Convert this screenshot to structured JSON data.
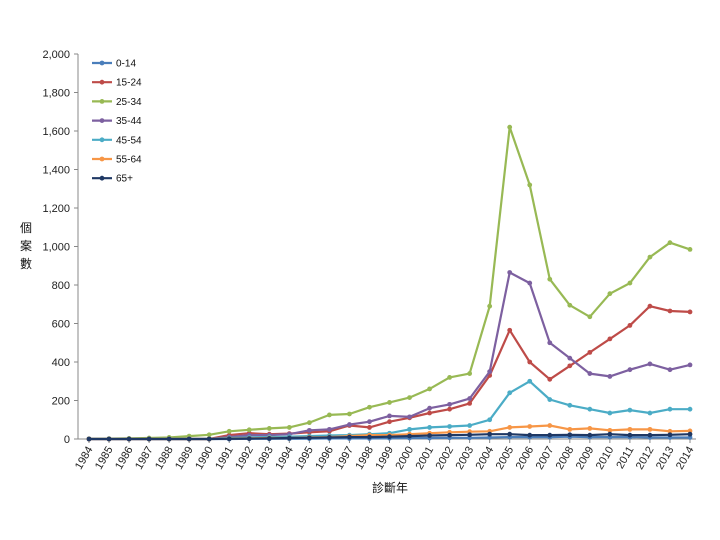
{
  "chart_data": {
    "type": "line",
    "title": "",
    "xlabel": "診斷年",
    "ylabel": "個案數",
    "ylim": [
      0,
      2000
    ],
    "yticks": [
      0,
      200,
      400,
      600,
      800,
      1000,
      1200,
      1400,
      1600,
      1800,
      2000
    ],
    "ytick_labels": [
      "0",
      "200",
      "400",
      "600",
      "800",
      "1,000",
      "1,200",
      "1,400",
      "1,600",
      "1,800",
      "2,000"
    ],
    "legend_position": "top-left",
    "categories": [
      "1984",
      "1985",
      "1986",
      "1987",
      "1988",
      "1989",
      "1990",
      "1991",
      "1992",
      "1993",
      "1994",
      "1995",
      "1996",
      "1997",
      "1998",
      "1999",
      "2000",
      "2001",
      "2002",
      "2003",
      "2004",
      "2005",
      "2006",
      "2007",
      "2008",
      "2009",
      "2010",
      "2011",
      "2012",
      "2013",
      "2014"
    ],
    "series": [
      {
        "name": "0-14",
        "color": "#4a7ebb",
        "values": [
          0,
          0,
          0,
          0,
          0,
          0,
          0,
          0,
          1,
          1,
          1,
          2,
          3,
          3,
          3,
          4,
          5,
          5,
          6,
          6,
          8,
          10,
          10,
          10,
          12,
          10,
          10,
          10,
          8,
          8,
          8
        ]
      },
      {
        "name": "15-24",
        "color": "#be4b48",
        "values": [
          0,
          0,
          0,
          0,
          0,
          0,
          0,
          20,
          30,
          25,
          28,
          35,
          40,
          70,
          60,
          90,
          110,
          135,
          155,
          185,
          330,
          565,
          400,
          310,
          380,
          450,
          520,
          590,
          690,
          665,
          660
        ]
      },
      {
        "name": "25-34",
        "color": "#98b954",
        "values": [
          1,
          2,
          3,
          5,
          8,
          15,
          22,
          40,
          48,
          55,
          60,
          85,
          125,
          130,
          165,
          190,
          215,
          260,
          320,
          340,
          690,
          1620,
          1320,
          830,
          695,
          635,
          755,
          810,
          945,
          1020,
          985
        ]
      },
      {
        "name": "35-44",
        "color": "#7d60a0",
        "values": [
          0,
          0,
          0,
          0,
          0,
          0,
          0,
          10,
          20,
          20,
          25,
          45,
          50,
          75,
          90,
          120,
          115,
          160,
          180,
          210,
          350,
          865,
          810,
          500,
          420,
          340,
          325,
          360,
          390,
          360,
          385
        ]
      },
      {
        "name": "45-54",
        "color": "#4bacc6",
        "values": [
          0,
          0,
          0,
          0,
          0,
          0,
          0,
          5,
          8,
          10,
          12,
          15,
          18,
          20,
          25,
          30,
          50,
          60,
          65,
          70,
          100,
          240,
          300,
          205,
          175,
          155,
          135,
          150,
          135,
          155,
          155
        ]
      },
      {
        "name": "55-64",
        "color": "#f79646",
        "values": [
          0,
          0,
          0,
          0,
          0,
          0,
          0,
          2,
          3,
          5,
          5,
          8,
          10,
          15,
          20,
          20,
          25,
          30,
          35,
          38,
          40,
          60,
          65,
          70,
          50,
          55,
          45,
          50,
          50,
          40,
          42
        ]
      },
      {
        "name": "65+",
        "color": "#1f3864",
        "values": [
          0,
          0,
          0,
          0,
          0,
          0,
          0,
          1,
          2,
          3,
          5,
          6,
          8,
          10,
          10,
          12,
          15,
          18,
          20,
          22,
          25,
          25,
          20,
          20,
          22,
          20,
          25,
          20,
          20,
          22,
          25
        ]
      }
    ]
  }
}
